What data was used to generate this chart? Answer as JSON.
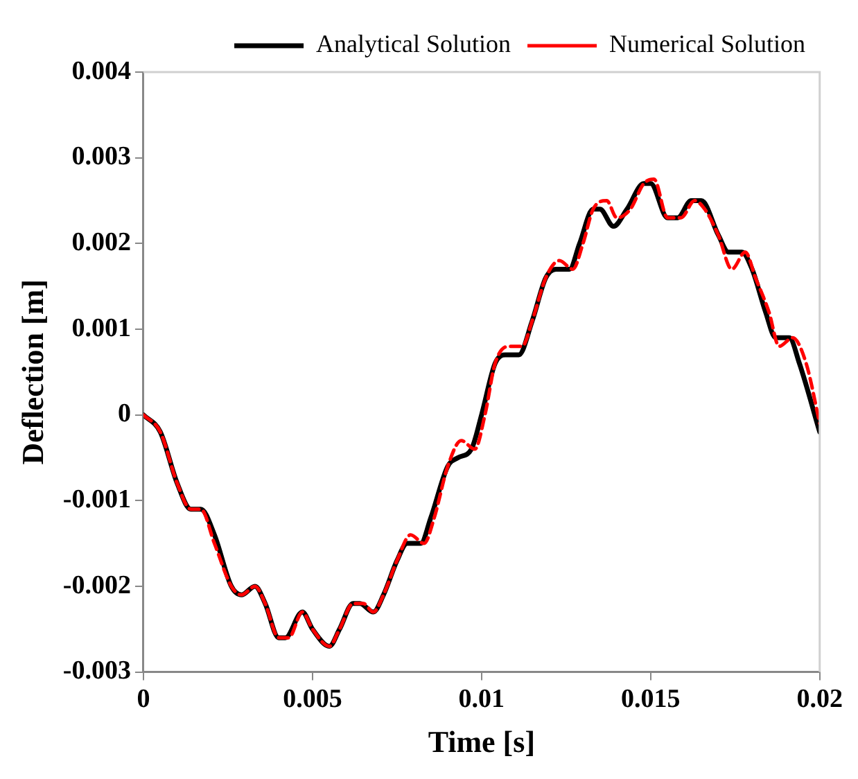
{
  "chart_data": {
    "type": "line",
    "xlabel": "Time [s]",
    "ylabel": "Deflection [m]",
    "xlim": [
      0,
      0.02
    ],
    "xticks": [
      0,
      0.005,
      0.01,
      0.015,
      0.02
    ],
    "ylim": [
      -0.003,
      0.004
    ],
    "yticks": [
      -0.003,
      -0.002,
      -0.001,
      0,
      0.001,
      0.002,
      0.003,
      0.004
    ],
    "grid": false,
    "legend": "top right",
    "marker": "none",
    "series": [
      {
        "name": "Analytical Solution",
        "color": "#000000",
        "line_style": "solid",
        "x": [
          0,
          0.0005,
          0.001,
          0.0014,
          0.0017,
          0.0021,
          0.0026,
          0.0029,
          0.0033,
          0.0036,
          0.004,
          0.0042,
          0.0047,
          0.005,
          0.0055,
          0.0058,
          0.0062,
          0.0064,
          0.0068,
          0.0071,
          0.0075,
          0.0078,
          0.0082,
          0.0085,
          0.009,
          0.0093,
          0.0097,
          0.01,
          0.0104,
          0.0107,
          0.0111,
          0.0115,
          0.0119,
          0.0122,
          0.0126,
          0.0129,
          0.0133,
          0.0135,
          0.0139,
          0.0143,
          0.0148,
          0.015,
          0.0155,
          0.0158,
          0.0162,
          0.0165,
          0.017,
          0.0173,
          0.0177,
          0.018,
          0.0184,
          0.0187,
          0.0191,
          0.0194,
          0.02
        ],
        "values": [
          0,
          -0.0002,
          -0.0008,
          -0.0011,
          -0.0011,
          -0.0014,
          -0.002,
          -0.0021,
          -0.002,
          -0.0022,
          -0.0026,
          -0.0026,
          -0.0023,
          -0.0025,
          -0.0027,
          -0.0025,
          -0.0022,
          -0.0022,
          -0.0023,
          -0.0021,
          -0.0017,
          -0.0015,
          -0.0015,
          -0.0012,
          -0.0006,
          -0.0005,
          -0.0004,
          0,
          0.0006,
          0.0007,
          0.0007,
          0.0011,
          0.0016,
          0.0017,
          0.0017,
          0.002,
          0.0024,
          0.0024,
          0.0022,
          0.0024,
          0.0027,
          0.0027,
          0.0023,
          0.0023,
          0.0025,
          0.0025,
          0.0021,
          0.0019,
          0.0019,
          0.0017,
          0.0012,
          0.0009,
          0.0009,
          0.0006,
          -0.0002
        ]
      },
      {
        "name": "Numerical Solution",
        "color": "#ff0000",
        "line_style": "dashed",
        "x": [
          0,
          0.0005,
          0.001,
          0.0014,
          0.0017,
          0.0021,
          0.0026,
          0.0029,
          0.0033,
          0.0036,
          0.004,
          0.0043,
          0.0047,
          0.005,
          0.0055,
          0.0058,
          0.0062,
          0.0065,
          0.0068,
          0.0071,
          0.0075,
          0.0079,
          0.0083,
          0.0086,
          0.009,
          0.0094,
          0.0098,
          0.0101,
          0.0104,
          0.0108,
          0.0112,
          0.0115,
          0.0119,
          0.0123,
          0.0127,
          0.013,
          0.0133,
          0.0137,
          0.014,
          0.0144,
          0.0148,
          0.0151,
          0.0155,
          0.0159,
          0.0163,
          0.0166,
          0.017,
          0.0174,
          0.0178,
          0.0181,
          0.0185,
          0.0188,
          0.0192,
          0.0196,
          0.02
        ],
        "values": [
          0,
          -0.0002,
          -0.0008,
          -0.0011,
          -0.0011,
          -0.0015,
          -0.002,
          -0.0021,
          -0.002,
          -0.0022,
          -0.0026,
          -0.0026,
          -0.0023,
          -0.0025,
          -0.0027,
          -0.0025,
          -0.0022,
          -0.0022,
          -0.0023,
          -0.0021,
          -0.0017,
          -0.0014,
          -0.0015,
          -0.0012,
          -0.0006,
          -0.0003,
          -0.0004,
          0,
          0.0006,
          0.0008,
          0.0008,
          0.0011,
          0.0016,
          0.0018,
          0.0017,
          0.002,
          0.0024,
          0.0025,
          0.0023,
          0.0024,
          0.0027,
          0.00275,
          0.0023,
          0.0023,
          0.0025,
          0.0024,
          0.0021,
          0.0017,
          0.0019,
          0.0016,
          0.0012,
          0.0008,
          0.0009,
          0.0006,
          -0.0001
        ]
      }
    ]
  }
}
